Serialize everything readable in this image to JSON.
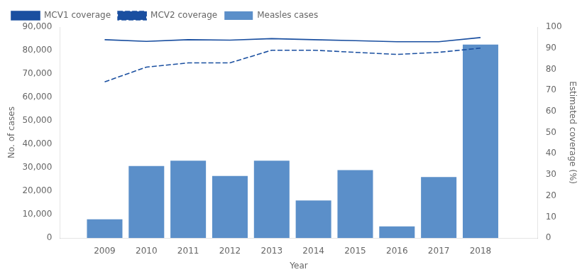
{
  "chart_data": {
    "type": "bar",
    "x_label": "Year",
    "y_label": "No. of cases",
    "y2_label": "Estimated coverage (%)",
    "x": [
      2009,
      2010,
      2011,
      2012,
      2013,
      2014,
      2015,
      2016,
      2017,
      2018
    ],
    "xlim": [
      2008.5,
      2018.8
    ],
    "xticks": [
      2009,
      2010,
      2011,
      2012,
      2013,
      2014,
      2015,
      2016,
      2017,
      2018
    ],
    "ylim": [
      0,
      90000
    ],
    "yticks": [
      0,
      {
        "value": 10000,
        "label": "10,000"
      },
      {
        "value": 20000,
        "label": "20,000"
      },
      {
        "value": 30000,
        "label": "30,000"
      },
      {
        "value": 40000,
        "label": "40,000"
      },
      {
        "value": 50000,
        "label": "50,000"
      },
      {
        "value": 60000,
        "label": "60,000"
      },
      {
        "value": 70000,
        "label": "70,000"
      },
      {
        "value": 80000,
        "label": "80,000"
      },
      {
        "value": 90000,
        "label": "90,000"
      }
    ],
    "y2lim": [
      0,
      100
    ],
    "y2ticks": [
      0,
      10,
      20,
      30,
      40,
      50,
      60,
      70,
      80,
      90,
      100
    ],
    "series": [
      {
        "name": "Measles cases",
        "type": "bar",
        "color": "#5b8fc9",
        "values": [
          8000,
          30700,
          33000,
          26500,
          33000,
          16000,
          29000,
          5000,
          26000,
          82500
        ]
      },
      {
        "name": "MCV1 coverage",
        "type": "line",
        "axis": "y2",
        "color": "#1a4fa0",
        "line_style": "solid",
        "values": [
          94,
          93.2,
          94,
          93.8,
          94.5,
          94,
          93.5,
          93,
          93,
          95
        ]
      },
      {
        "name": "MCV2 coverage",
        "type": "line",
        "axis": "y2",
        "color": "#1a4fa0",
        "line_style": "dashed",
        "values": [
          74,
          81,
          83,
          83,
          89,
          89,
          88,
          87,
          88,
          90
        ]
      }
    ],
    "legend": "upper left",
    "grid": false
  }
}
